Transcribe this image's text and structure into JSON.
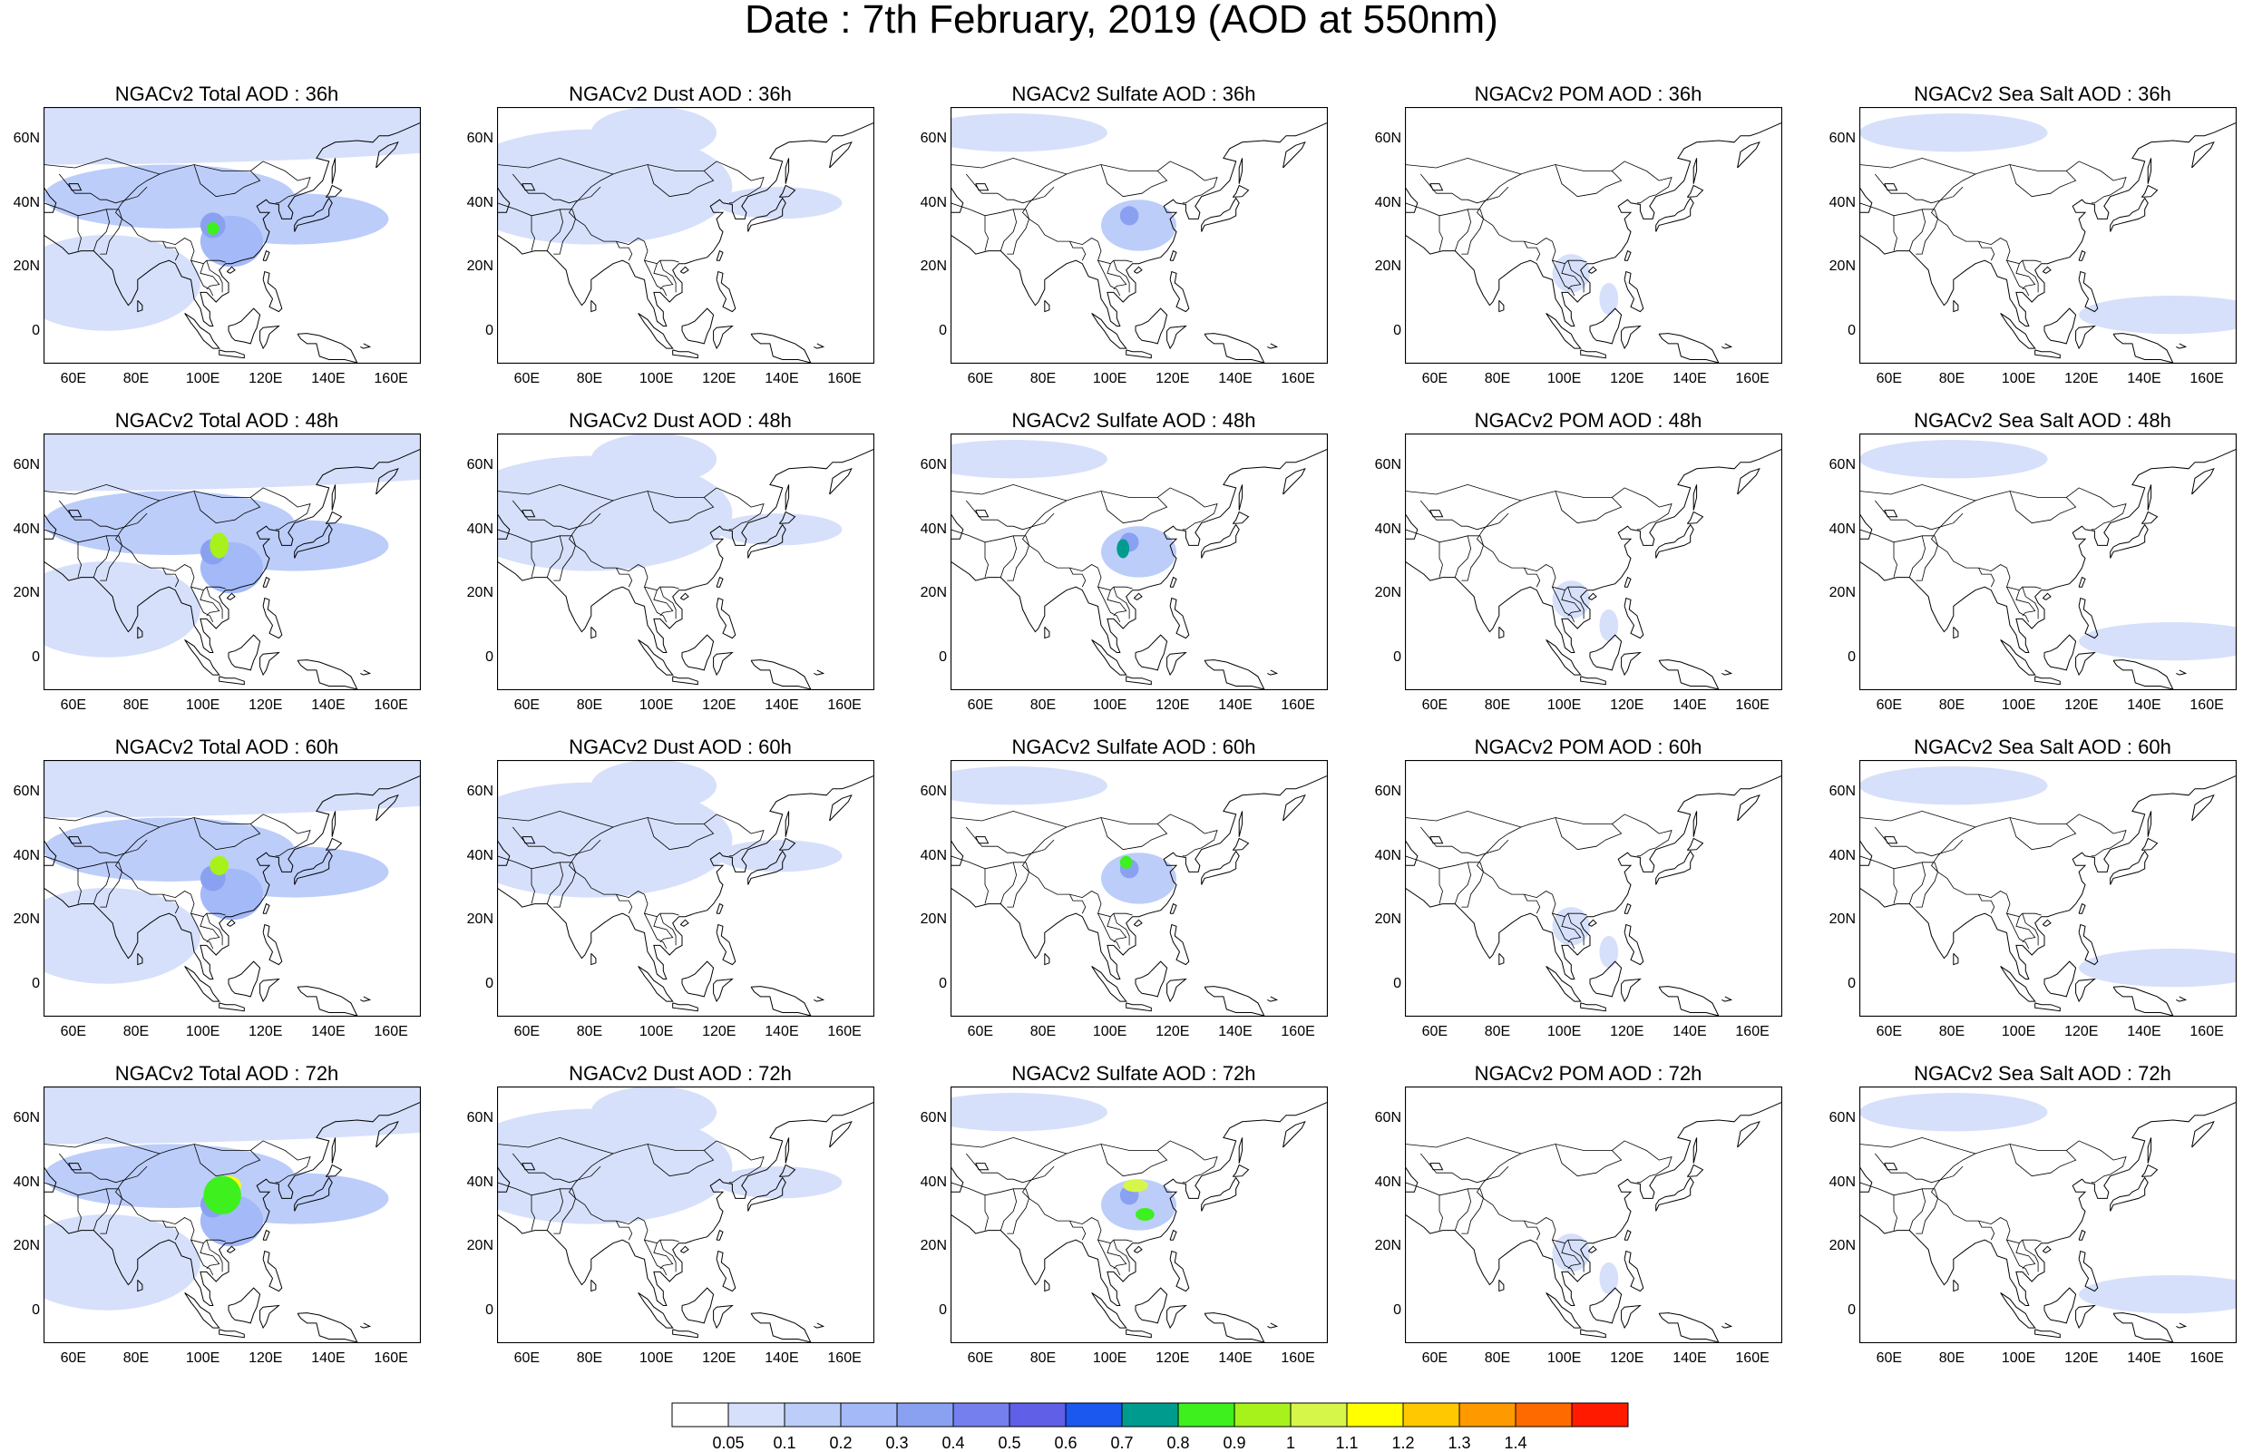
{
  "title": "Date : 7th February, 2019 (AOD at 550nm)",
  "map": {
    "lon_range": [
      50,
      170
    ],
    "lat_range": [
      -10,
      70
    ],
    "lon_ticks": [
      "60E",
      "80E",
      "100E",
      "120E",
      "140E",
      "160E"
    ],
    "lat_ticks": [
      "60N",
      "40N",
      "20N",
      "0"
    ]
  },
  "panels": [
    {
      "title": "NGACv2 Total AOD : 36h",
      "species": "total",
      "hour": 36
    },
    {
      "title": "NGACv2 Dust AOD : 36h",
      "species": "dust",
      "hour": 36
    },
    {
      "title": "NGACv2 Sulfate AOD : 36h",
      "species": "sulfate",
      "hour": 36
    },
    {
      "title": "NGACv2 POM AOD : 36h",
      "species": "pom",
      "hour": 36
    },
    {
      "title": "NGACv2 Sea Salt AOD : 36h",
      "species": "seasalt",
      "hour": 36
    },
    {
      "title": "NGACv2 Total AOD : 48h",
      "species": "total",
      "hour": 48
    },
    {
      "title": "NGACv2 Dust AOD : 48h",
      "species": "dust",
      "hour": 48
    },
    {
      "title": "NGACv2 Sulfate AOD : 48h",
      "species": "sulfate",
      "hour": 48
    },
    {
      "title": "NGACv2 POM AOD : 48h",
      "species": "pom",
      "hour": 48
    },
    {
      "title": "NGACv2 Sea Salt AOD : 48h",
      "species": "seasalt",
      "hour": 48
    },
    {
      "title": "NGACv2 Total AOD : 60h",
      "species": "total",
      "hour": 60
    },
    {
      "title": "NGACv2 Dust AOD : 60h",
      "species": "dust",
      "hour": 60
    },
    {
      "title": "NGACv2 Sulfate AOD : 60h",
      "species": "sulfate",
      "hour": 60
    },
    {
      "title": "NGACv2 POM AOD : 60h",
      "species": "pom",
      "hour": 60
    },
    {
      "title": "NGACv2 Sea Salt AOD : 60h",
      "species": "seasalt",
      "hour": 60
    },
    {
      "title": "NGACv2 Total AOD : 72h",
      "species": "total",
      "hour": 72
    },
    {
      "title": "NGACv2 Dust AOD : 72h",
      "species": "dust",
      "hour": 72
    },
    {
      "title": "NGACv2 Sulfate AOD : 72h",
      "species": "sulfate",
      "hour": 72
    },
    {
      "title": "NGACv2 POM AOD : 72h",
      "species": "pom",
      "hour": 72
    },
    {
      "title": "NGACv2 Sea Salt  AOD : 72h",
      "species": "seasalt",
      "hour": 72
    }
  ],
  "colorbar": {
    "labels": [
      "0.05",
      "0.1",
      "0.2",
      "0.3",
      "0.4",
      "0.5",
      "0.6",
      "0.7",
      "0.8",
      "0.9",
      "1",
      "1.1",
      "1.2",
      "1.3",
      "1.4"
    ],
    "colors": [
      "#ffffff",
      "#d6e0fb",
      "#bccdfa",
      "#a4b9f7",
      "#8aa1f2",
      "#7580ee",
      "#5f5fe8",
      "#1a58f0",
      "#009b8f",
      "#3df01e",
      "#a6f21a",
      "#d7f64a",
      "#ffff00",
      "#ffc800",
      "#ff9900",
      "#ff6a00",
      "#ff1a00"
    ]
  }
}
